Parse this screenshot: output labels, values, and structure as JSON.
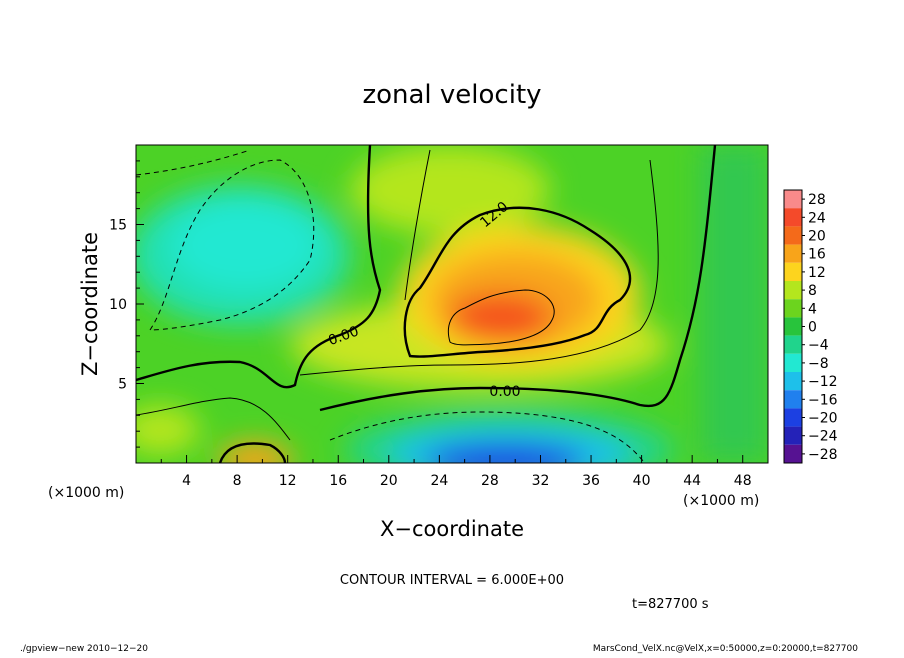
{
  "chart_data": {
    "type": "heatmap",
    "title": "zonal velocity",
    "xlabel": "X−coordinate",
    "ylabel": "Z−coordinate",
    "x_unit_left": "(×1000 m)",
    "x_unit_right": "(×1000 m)",
    "xlim": [
      0,
      50
    ],
    "ylim": [
      0,
      20
    ],
    "x_ticks": [
      "4",
      "8",
      "12",
      "16",
      "20",
      "24",
      "28",
      "32",
      "36",
      "40",
      "44",
      "48"
    ],
    "x_tick_values": [
      4,
      8,
      12,
      16,
      20,
      24,
      28,
      32,
      36,
      40,
      44,
      48
    ],
    "y_ticks": [
      "5",
      "10",
      "15"
    ],
    "y_tick_values": [
      5,
      10,
      15
    ],
    "colorbar": {
      "labels": [
        "28",
        "24",
        "20",
        "16",
        "12",
        "8",
        "4",
        "0",
        "−4",
        "−8",
        "−12",
        "−16",
        "−20",
        "−24",
        "−28"
      ],
      "values": [
        28,
        24,
        20,
        16,
        12,
        8,
        4,
        0,
        -4,
        -8,
        -12,
        -16,
        -20,
        -24,
        -28
      ],
      "colors": [
        "#f98a8a",
        "#f44a2a",
        "#f46a1a",
        "#f8a41a",
        "#fdd41e",
        "#b4e61e",
        "#6cd41e",
        "#28c43c",
        "#20d48c",
        "#22e8d2",
        "#1ec0ea",
        "#2080ee",
        "#1c40e2",
        "#2422b8",
        "#561292"
      ]
    },
    "contour_labels": [
      "12.0",
      "0.00",
      "0.00"
    ],
    "contour_interval_text": "CONTOUR INTERVAL = 6.000E+00",
    "time_text": "t=827700 s",
    "features": [
      {
        "x": 28,
        "z": 8.8,
        "value": 22
      },
      {
        "x": 30,
        "z": 1.2,
        "value": -20
      },
      {
        "x": 12,
        "z": 13,
        "value": -9
      },
      {
        "x": 10,
        "z": 0.5,
        "value": 16
      }
    ]
  },
  "footer": {
    "left": "./gpview−new   2010−12−20",
    "right": "MarsCond_VelX.nc@VelX,x=0:50000,z=0:20000,t=827700"
  }
}
